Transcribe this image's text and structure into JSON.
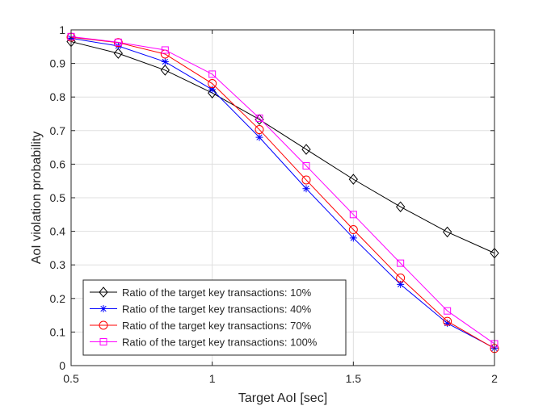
{
  "chart_data": {
    "type": "line",
    "title": "",
    "xlabel": "Target AoI [sec]",
    "ylabel": "AoI violation probability",
    "xlim": [
      0.5,
      2
    ],
    "ylim": [
      0,
      1
    ],
    "xticks": [
      0.5,
      1,
      1.5,
      2
    ],
    "xtick_labels": [
      "0.5",
      "1",
      "1.5",
      "2"
    ],
    "yticks": [
      0,
      0.1,
      0.2,
      0.3,
      0.4,
      0.5,
      0.6,
      0.7,
      0.8,
      0.9,
      1
    ],
    "ytick_labels": [
      "0",
      "0.1",
      "0.2",
      "0.3",
      "0.4",
      "0.5",
      "0.6",
      "0.7",
      "0.8",
      "0.9",
      "1"
    ],
    "grid": true,
    "legend_position": "bottom-left",
    "x": [
      0.5,
      0.667,
      0.833,
      1.0,
      1.167,
      1.333,
      1.5,
      1.667,
      1.833,
      2.0
    ],
    "series": [
      {
        "name": "Ratio of the target key transactions: 10%",
        "color": "#000000",
        "marker": "diamond",
        "values": [
          0.965,
          0.93,
          0.88,
          0.812,
          0.733,
          0.644,
          0.555,
          0.473,
          0.398,
          0.335
        ]
      },
      {
        "name": "Ratio of the target key transactions: 40%",
        "color": "#0000ff",
        "marker": "asterisk",
        "values": [
          0.975,
          0.952,
          0.905,
          0.822,
          0.68,
          0.527,
          0.38,
          0.242,
          0.126,
          0.052
        ]
      },
      {
        "name": "Ratio of the target key transactions: 70%",
        "color": "#ff0000",
        "marker": "circle",
        "values": [
          0.978,
          0.962,
          0.928,
          0.84,
          0.703,
          0.553,
          0.405,
          0.261,
          0.132,
          0.051
        ]
      },
      {
        "name": "Ratio of the target key transactions: 100%",
        "color": "#ff00ff",
        "marker": "square",
        "values": [
          0.98,
          0.963,
          0.94,
          0.868,
          0.737,
          0.595,
          0.45,
          0.305,
          0.163,
          0.065
        ]
      }
    ]
  }
}
